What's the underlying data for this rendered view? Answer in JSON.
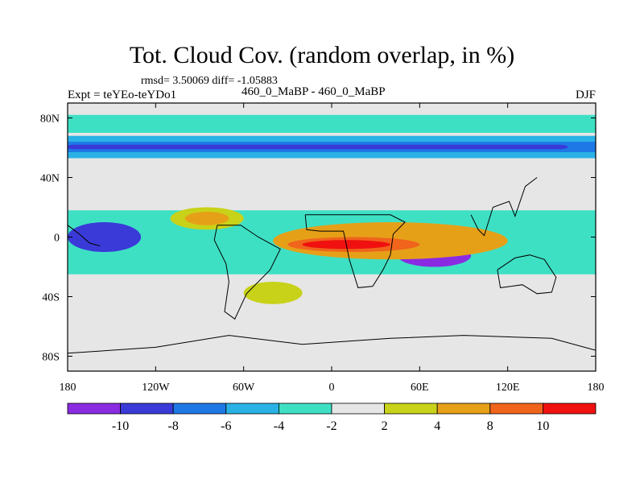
{
  "title": "Tot. Cloud Cov. (random overlap, in %)",
  "stats": "rmsd= 3.50069 diff= -1.05883",
  "experiment": "Expt = teYEo-teYDo1",
  "cases": "460_0_MaBP - 460_0_MaBP",
  "season": "DJF",
  "map": {
    "lon_range": [
      -180,
      180
    ],
    "lat_range": [
      -90,
      90
    ],
    "x_ticks": [
      {
        "value": -180,
        "label": "180"
      },
      {
        "value": -120,
        "label": "120W"
      },
      {
        "value": -60,
        "label": "60W"
      },
      {
        "value": 0,
        "label": "0"
      },
      {
        "value": 60,
        "label": "60E"
      },
      {
        "value": 120,
        "label": "120E"
      },
      {
        "value": 180,
        "label": "180"
      }
    ],
    "y_ticks": [
      {
        "value": 80,
        "label": "80N"
      },
      {
        "value": 40,
        "label": "40N"
      },
      {
        "value": 0,
        "label": "0"
      },
      {
        "value": -40,
        "label": "40S"
      },
      {
        "value": -80,
        "label": "80S"
      }
    ],
    "background_color": "#e6e6e6"
  },
  "colorbar": {
    "colors": [
      "#8a2be2",
      "#3a3ad8",
      "#1e78e6",
      "#2ab2e6",
      "#3ee0c4",
      "#e6e6e6",
      "#c8d218",
      "#e6a018",
      "#f0641c",
      "#f01010"
    ],
    "labels": [
      "-10",
      "-8",
      "-6",
      "-4",
      "-2",
      "2",
      "4",
      "8",
      "10"
    ]
  },
  "chart_data": {
    "type": "heatmap",
    "title": "Tot. Cloud Cov. (random overlap, in %)",
    "units": "%",
    "levels": [
      -10,
      -8,
      -6,
      -4,
      -2,
      2,
      4,
      8,
      10
    ],
    "regions": [
      {
        "name": "arctic-band",
        "lon": [
          -180,
          180
        ],
        "lat": [
          70,
          82
        ],
        "value": -3,
        "color": "#3ee0c4"
      },
      {
        "name": "north-mid-band-outer",
        "lon": [
          -180,
          180
        ],
        "lat": [
          53,
          68
        ],
        "value": -4,
        "color": "#2ab2e6"
      },
      {
        "name": "north-mid-band-core",
        "lon": [
          -180,
          180
        ],
        "lat": [
          57,
          64
        ],
        "value": -7,
        "color": "#1e78e6"
      },
      {
        "name": "north-mid-band-max",
        "lon": [
          -170,
          150
        ],
        "lat": [
          59,
          62
        ],
        "value": -9,
        "color": "#3a3ad8"
      },
      {
        "name": "tropical-cyan",
        "lon": [
          -180,
          180
        ],
        "lat": [
          -25,
          18
        ],
        "value": -3,
        "color": "#3ee0c4"
      },
      {
        "name": "east-pacific-blue",
        "lon": [
          -180,
          -130
        ],
        "lat": [
          -10,
          10
        ],
        "value": -9,
        "color": "#3a3ad8"
      },
      {
        "name": "south-tropics-purple",
        "lon": [
          45,
          95
        ],
        "lat": [
          -20,
          -5
        ],
        "value": -11,
        "color": "#8a2be2"
      },
      {
        "name": "pacific-yellow",
        "lon": [
          -110,
          -60
        ],
        "lat": [
          5,
          20
        ],
        "value": 3,
        "color": "#c8d218"
      },
      {
        "name": "pacific-orange",
        "lon": [
          -100,
          -70
        ],
        "lat": [
          8,
          17
        ],
        "value": 6,
        "color": "#e6a018"
      },
      {
        "name": "equatorial-orange",
        "lon": [
          -40,
          120
        ],
        "lat": [
          -15,
          10
        ],
        "value": 6,
        "color": "#e6a018"
      },
      {
        "name": "equatorial-red-orange",
        "lon": [
          -30,
          60
        ],
        "lat": [
          -10,
          0
        ],
        "value": 9,
        "color": "#f0641c"
      },
      {
        "name": "equatorial-red",
        "lon": [
          -20,
          40
        ],
        "lat": [
          -8,
          -2
        ],
        "value": 11,
        "color": "#f01010"
      },
      {
        "name": "south-atlantic-yellow",
        "lon": [
          -60,
          -20
        ],
        "lat": [
          -45,
          -30
        ],
        "value": 3,
        "color": "#c8d218"
      }
    ]
  }
}
